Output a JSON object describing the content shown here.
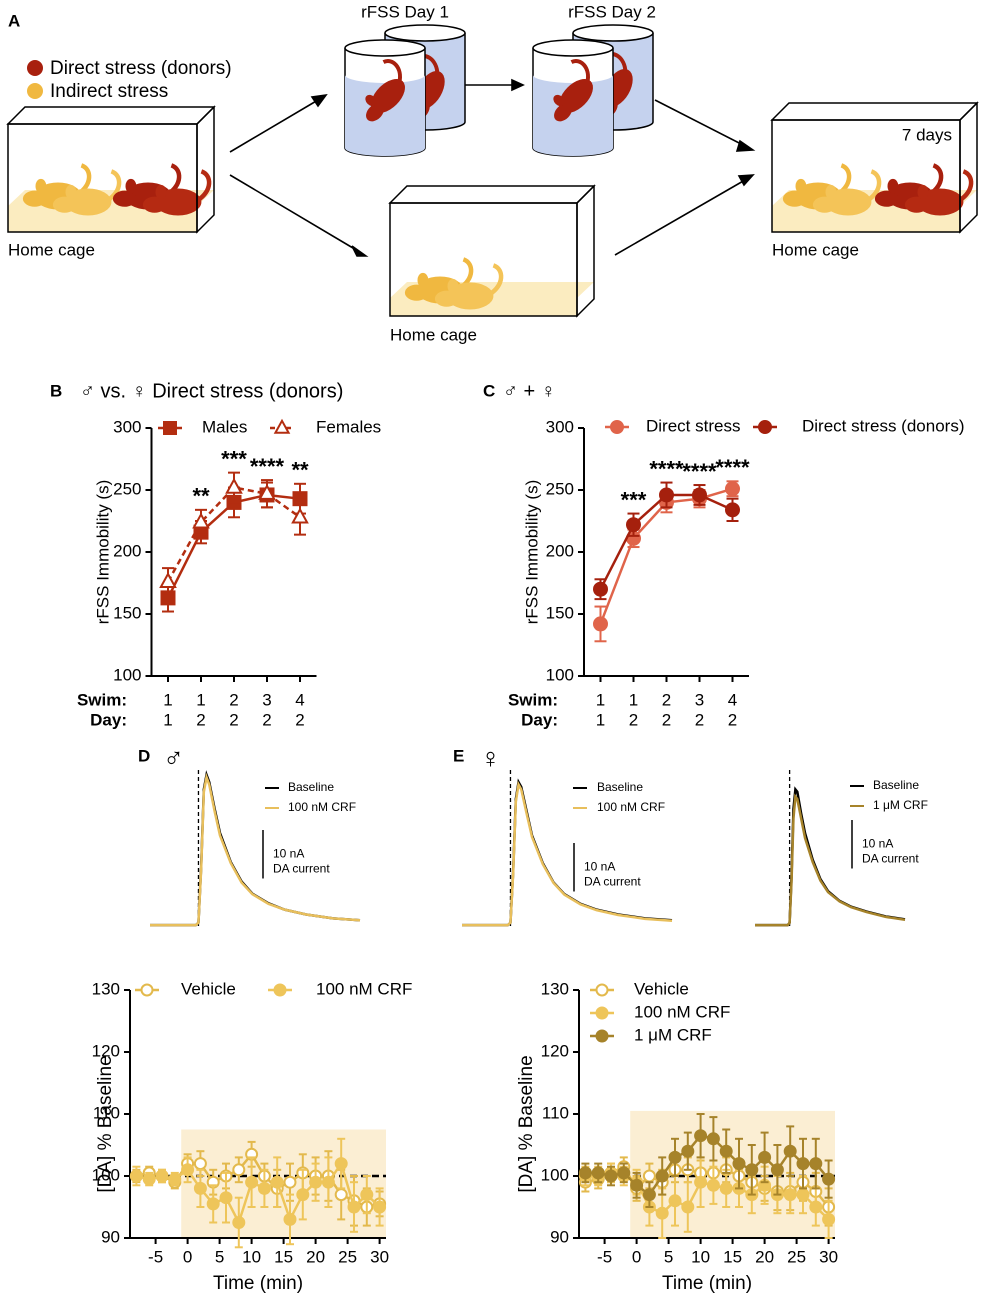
{
  "diagram": {
    "panel": "A",
    "legend": [
      "Direct stress (donors)",
      "Indirect stress"
    ],
    "stages": [
      "rFSS Day 1",
      "rFSS Day 2"
    ],
    "home_cage_labels": [
      "Home cage",
      "Home cage",
      "Home cage"
    ],
    "duration": "7 days"
  },
  "chart_data": [
    {
      "type": "line",
      "panel": "B",
      "title": "♂ vs. ♀ Direct stress (donors)",
      "ylabel": "rFSS Immobility (s)",
      "category_row_labels": [
        "Swim:",
        "Day:"
      ],
      "categories": [
        "1",
        "1",
        "2",
        "3",
        "4"
      ],
      "categories_day": [
        "1",
        "2",
        "2",
        "2",
        "2"
      ],
      "ylim": [
        100,
        300
      ],
      "yticks": [
        100,
        150,
        200,
        250,
        300
      ],
      "series": [
        {
          "name": "Males",
          "color": "#b32d10",
          "marker": "square",
          "filled": true,
          "dashed": false,
          "values": [
            163,
            216,
            240,
            246,
            243
          ],
          "errors": [
            11,
            9,
            12,
            10,
            12
          ]
        },
        {
          "name": "Females",
          "color": "#b32d10",
          "marker": "triangle",
          "filled": false,
          "dashed": true,
          "values": [
            176,
            224,
            252,
            247,
            228
          ],
          "errors": [
            11,
            10,
            12,
            11,
            14
          ]
        }
      ],
      "significance": [
        null,
        "**",
        "***",
        "****",
        "**"
      ]
    },
    {
      "type": "line",
      "panel": "C",
      "title": "♂ + ♀",
      "ylabel": "rFSS Immobility (s)",
      "category_row_labels": [
        "Swim:",
        "Day:"
      ],
      "categories": [
        "1",
        "1",
        "2",
        "3",
        "4"
      ],
      "categories_day": [
        "1",
        "2",
        "2",
        "2",
        "2"
      ],
      "ylim": [
        100,
        300
      ],
      "yticks": [
        100,
        150,
        200,
        250,
        300
      ],
      "series": [
        {
          "name": "Direct stress",
          "color": "#e0644a",
          "marker": "circle",
          "filled": true,
          "dashed": false,
          "values": [
            142,
            211,
            240,
            243,
            251
          ],
          "errors": [
            14,
            7,
            8,
            7,
            6
          ]
        },
        {
          "name": "Direct stress (donors)",
          "color": "#a5200d",
          "marker": "circle",
          "filled": true,
          "dashed": false,
          "values": [
            170,
            222,
            246,
            246,
            234
          ],
          "errors": [
            8,
            9,
            10,
            8,
            9
          ]
        }
      ],
      "significance": [
        null,
        "***",
        "****",
        "****",
        "****"
      ]
    },
    {
      "type": "trace",
      "panel": "D",
      "title": "♂",
      "xlim": [
        -0.9,
        3.0
      ],
      "ylim": [
        -1,
        32
      ],
      "stimulus": 0,
      "x": [
        -0.9,
        -0.05,
        0,
        0.05,
        0.1,
        0.15,
        0.2,
        0.3,
        0.4,
        0.6,
        0.8,
        1.0,
        1.3,
        1.6,
        2.0,
        2.5,
        3.0
      ],
      "series": [
        {
          "name": "Baseline",
          "color": "#000000",
          "values": [
            0,
            0,
            0.5,
            12,
            28,
            31,
            29.5,
            24,
            19,
            13,
            9,
            6.5,
            4.5,
            3.2,
            2.2,
            1.4,
            1
          ]
        },
        {
          "name": "100 nM CRF",
          "color": "#e8bf5c",
          "values": [
            0,
            0,
            0.5,
            11.5,
            27.5,
            30.5,
            29,
            23.5,
            18.5,
            12.8,
            8.8,
            6.4,
            4.4,
            3.2,
            2.2,
            1.4,
            1
          ]
        }
      ],
      "scale_bar": {
        "value": 10,
        "label": "10 nA"
      },
      "scale_bar_caption": "DA current"
    },
    {
      "type": "trace",
      "panel": "E",
      "title": "♀",
      "xlim": [
        -0.9,
        3.0
      ],
      "ylim": [
        -1,
        32
      ],
      "stimulus": 0,
      "x": [
        -0.9,
        -0.05,
        0,
        0.05,
        0.1,
        0.15,
        0.2,
        0.3,
        0.4,
        0.6,
        0.8,
        1.0,
        1.3,
        1.6,
        2.0,
        2.5,
        3.0
      ],
      "series": [
        {
          "name": "Baseline",
          "color": "#000000",
          "values": [
            0,
            0,
            0.5,
            11,
            26,
            29.5,
            28.5,
            23.5,
            18.5,
            12.8,
            8.8,
            6.4,
            4.4,
            3.2,
            2.2,
            1.4,
            1
          ]
        },
        {
          "name": "100 nM CRF",
          "color": "#e8bf5c",
          "values": [
            0,
            0,
            0.5,
            10.5,
            25.5,
            29,
            28,
            23,
            18.2,
            12.6,
            8.7,
            6.3,
            4.3,
            3.1,
            2.1,
            1.3,
            0.9
          ]
        }
      ],
      "scale_bar": {
        "value": 10,
        "label": "10 nA"
      },
      "scale_bar_caption": "DA current"
    },
    {
      "type": "trace",
      "xlim": [
        -0.9,
        3.0
      ],
      "ylim": [
        -1,
        32
      ],
      "stimulus": 0,
      "x": [
        -0.9,
        -0.05,
        0,
        0.05,
        0.1,
        0.15,
        0.2,
        0.3,
        0.4,
        0.6,
        0.8,
        1.0,
        1.3,
        1.6,
        2.0,
        2.5,
        3.0
      ],
      "series": [
        {
          "name": "Baseline",
          "color": "#000000",
          "values": [
            0,
            0,
            0.5,
            10,
            24,
            28,
            27.5,
            23,
            19,
            13.5,
            9.5,
            7,
            5,
            3.8,
            2.8,
            1.8,
            1.2
          ]
        },
        {
          "name": "1 μM CRF",
          "color": "#a6832a",
          "values": [
            0,
            0,
            0.5,
            9,
            22,
            26.5,
            26,
            22,
            18,
            13,
            9.2,
            6.8,
            4.9,
            3.7,
            2.7,
            1.7,
            1.1
          ]
        }
      ],
      "scale_bar": {
        "value": 10,
        "label": "10 nA"
      },
      "scale_bar_caption": "DA current"
    },
    {
      "type": "timecourse",
      "xlabel": "Time (min)",
      "ylabel": "[DA] % Baseline",
      "xlim": [
        -9,
        31
      ],
      "xticks": [
        -5,
        0,
        5,
        10,
        15,
        20,
        25,
        30
      ],
      "ylim": [
        90,
        130
      ],
      "yticks": [
        90,
        100,
        110,
        120,
        130
      ],
      "shaded_region": {
        "x": [
          -1,
          31
        ],
        "y": [
          90,
          107.5
        ]
      },
      "reference_line": 100,
      "x": [
        -8,
        -6,
        -4,
        -2,
        0,
        2,
        4,
        6,
        8,
        10,
        12,
        14,
        16,
        18,
        20,
        22,
        24,
        26,
        28,
        30
      ],
      "series": [
        {
          "name": "Vehicle",
          "color": "#e3b94c",
          "filled": false,
          "values": [
            100,
            100.5,
            100,
            99,
            102,
            102,
            99,
            100,
            101,
            103.5,
            100,
            98,
            99,
            100.5,
            100,
            100,
            97,
            96,
            95,
            95.5
          ],
          "errors": [
            1,
            1,
            1,
            1,
            1.5,
            2,
            2,
            2,
            2,
            2,
            2,
            3,
            3,
            3,
            3,
            4,
            4,
            4,
            3,
            2
          ]
        },
        {
          "name": "100 nM CRF",
          "color": "#eec55a",
          "filled": true,
          "values": [
            100,
            99.5,
            100,
            99.5,
            101,
            98,
            95.5,
            96.5,
            92.5,
            99,
            98,
            99,
            93,
            97,
            99,
            99,
            102,
            95,
            97,
            95
          ],
          "errors": [
            1.5,
            1,
            1,
            1,
            2,
            3,
            3,
            4,
            4,
            4,
            3,
            4,
            4,
            4,
            3,
            4,
            4,
            4,
            3,
            3
          ]
        }
      ]
    },
    {
      "type": "timecourse",
      "xlabel": "Time (min)",
      "ylabel": "[DA] % Baseline",
      "xlim": [
        -9,
        31
      ],
      "xticks": [
        -5,
        0,
        5,
        10,
        15,
        20,
        25,
        30
      ],
      "ylim": [
        90,
        130
      ],
      "yticks": [
        90,
        100,
        110,
        120,
        130
      ],
      "shaded_region": {
        "x": [
          -1,
          31
        ],
        "y": [
          90,
          110.5
        ]
      },
      "reference_line": 100,
      "x": [
        -8,
        -6,
        -4,
        -2,
        0,
        2,
        4,
        6,
        8,
        10,
        12,
        14,
        16,
        18,
        20,
        22,
        24,
        26,
        28,
        30
      ],
      "series": [
        {
          "name": "Vehicle",
          "color": "#e3b94c",
          "filled": false,
          "values": [
            99,
            99.5,
            100.5,
            101.5,
            98,
            100,
            99,
            101,
            101,
            100.5,
            100.5,
            101,
            100,
            99,
            98,
            97.5,
            97.5,
            99,
            97.5,
            95
          ],
          "errors": [
            1.5,
            1.5,
            1.5,
            1.5,
            2,
            2,
            2,
            2,
            2,
            2,
            2,
            2,
            2,
            2,
            2,
            3,
            3,
            3,
            3,
            3
          ]
        },
        {
          "name": "100 nM CRF",
          "color": "#eec55a",
          "filled": true,
          "values": [
            100,
            100,
            100.5,
            100,
            99,
            95,
            94,
            96,
            95,
            99,
            98.5,
            98,
            98,
            97,
            98.5,
            97,
            97,
            97,
            95,
            93
          ],
          "errors": [
            1.5,
            1.5,
            1.5,
            1.5,
            2,
            3,
            4,
            4,
            4,
            4,
            3,
            3,
            3,
            3,
            3,
            3,
            3,
            3,
            3,
            3
          ]
        },
        {
          "name": "1 μM CRF",
          "color": "#a6832a",
          "filled": true,
          "values": [
            100.5,
            100.5,
            100,
            100.5,
            98.5,
            97,
            100,
            103,
            104,
            106.5,
            106,
            104,
            102,
            101,
            103,
            101,
            104,
            102,
            102,
            99.5
          ],
          "errors": [
            1.5,
            1.5,
            1.5,
            1.5,
            2,
            2,
            3,
            3,
            3,
            3.5,
            3.5,
            3.5,
            4,
            4,
            4,
            4,
            4,
            4,
            4,
            3
          ]
        }
      ]
    }
  ]
}
